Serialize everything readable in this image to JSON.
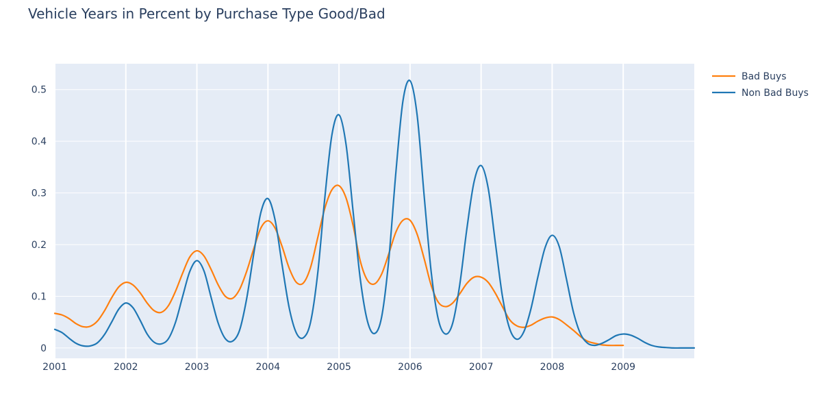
{
  "chart_data": {
    "type": "line",
    "title": "Vehicle Years in Percent by Purchase Type Good/Bad",
    "xlabel": "",
    "ylabel": "",
    "xlim": [
      2001,
      2010
    ],
    "ylim": [
      -0.02,
      0.55
    ],
    "x_ticks": [
      2001,
      2002,
      2003,
      2004,
      2005,
      2006,
      2007,
      2008,
      2009
    ],
    "y_ticks": [
      0,
      0.1,
      0.2,
      0.3,
      0.4,
      0.5
    ],
    "y_tick_labels": [
      "0",
      "0.1",
      "0.2",
      "0.3",
      "0.4",
      "0.5"
    ],
    "grid": true,
    "legend_position": "top-right",
    "series": [
      {
        "name": "Bad Buys",
        "color": "#ff7f0e",
        "x": [
          2001.0,
          2001.1,
          2001.2,
          2001.3,
          2001.4,
          2001.5,
          2001.6,
          2001.7,
          2001.8,
          2001.9,
          2002.0,
          2002.1,
          2002.2,
          2002.3,
          2002.4,
          2002.5,
          2002.6,
          2002.7,
          2002.8,
          2002.9,
          2003.0,
          2003.1,
          2003.2,
          2003.3,
          2003.4,
          2003.5,
          2003.6,
          2003.7,
          2003.8,
          2003.9,
          2004.0,
          2004.1,
          2004.2,
          2004.3,
          2004.4,
          2004.5,
          2004.6,
          2004.7,
          2004.8,
          2004.9,
          2005.0,
          2005.1,
          2005.2,
          2005.3,
          2005.4,
          2005.5,
          2005.6,
          2005.7,
          2005.8,
          2005.9,
          2006.0,
          2006.1,
          2006.2,
          2006.3,
          2006.4,
          2006.5,
          2006.6,
          2006.7,
          2006.8,
          2006.9,
          2007.0,
          2007.1,
          2007.2,
          2007.3,
          2007.4,
          2007.5,
          2007.6,
          2007.7,
          2007.8,
          2007.9,
          2008.0,
          2008.1,
          2008.2,
          2008.3,
          2008.4,
          2008.5,
          2008.6,
          2008.7,
          2008.8,
          2008.9,
          2009.0
        ],
        "y": [
          0.067,
          0.064,
          0.057,
          0.047,
          0.041,
          0.042,
          0.052,
          0.072,
          0.097,
          0.118,
          0.127,
          0.122,
          0.107,
          0.087,
          0.072,
          0.069,
          0.082,
          0.11,
          0.145,
          0.176,
          0.188,
          0.178,
          0.152,
          0.122,
          0.1,
          0.096,
          0.113,
          0.148,
          0.192,
          0.232,
          0.246,
          0.232,
          0.196,
          0.154,
          0.127,
          0.126,
          0.156,
          0.213,
          0.27,
          0.306,
          0.314,
          0.29,
          0.236,
          0.168,
          0.131,
          0.124,
          0.143,
          0.182,
          0.224,
          0.247,
          0.247,
          0.22,
          0.172,
          0.12,
          0.088,
          0.08,
          0.087,
          0.105,
          0.125,
          0.137,
          0.137,
          0.127,
          0.106,
          0.08,
          0.055,
          0.043,
          0.04,
          0.044,
          0.052,
          0.058,
          0.06,
          0.055,
          0.045,
          0.034,
          0.022,
          0.013,
          0.009,
          0.006,
          0.005,
          0.005,
          0.005
        ]
      },
      {
        "name": "Non Bad Buys",
        "color": "#1f77b4",
        "x": [
          2001.0,
          2001.1,
          2001.2,
          2001.3,
          2001.4,
          2001.5,
          2001.6,
          2001.7,
          2001.8,
          2001.9,
          2002.0,
          2002.1,
          2002.2,
          2002.3,
          2002.4,
          2002.5,
          2002.6,
          2002.7,
          2002.8,
          2002.9,
          2003.0,
          2003.1,
          2003.2,
          2003.3,
          2003.4,
          2003.5,
          2003.6,
          2003.7,
          2003.8,
          2003.9,
          2004.0,
          2004.1,
          2004.2,
          2004.3,
          2004.4,
          2004.5,
          2004.6,
          2004.7,
          2004.8,
          2004.9,
          2005.0,
          2005.1,
          2005.2,
          2005.3,
          2005.4,
          2005.5,
          2005.6,
          2005.7,
          2005.8,
          2005.9,
          2006.0,
          2006.1,
          2006.2,
          2006.3,
          2006.4,
          2006.5,
          2006.6,
          2006.7,
          2006.8,
          2006.9,
          2007.0,
          2007.1,
          2007.2,
          2007.3,
          2007.4,
          2007.5,
          2007.6,
          2007.7,
          2007.8,
          2007.9,
          2008.0,
          2008.1,
          2008.2,
          2008.3,
          2008.4,
          2008.5,
          2008.6,
          2008.7,
          2008.8,
          2008.9,
          2009.0,
          2009.1,
          2009.2,
          2009.3,
          2009.4,
          2009.5,
          2009.6,
          2009.7,
          2009.8,
          2009.9,
          2010.0
        ],
        "y": [
          0.036,
          0.03,
          0.019,
          0.009,
          0.004,
          0.004,
          0.01,
          0.026,
          0.05,
          0.075,
          0.087,
          0.078,
          0.054,
          0.027,
          0.011,
          0.008,
          0.018,
          0.05,
          0.1,
          0.148,
          0.169,
          0.149,
          0.098,
          0.048,
          0.018,
          0.013,
          0.034,
          0.095,
          0.182,
          0.262,
          0.289,
          0.248,
          0.16,
          0.077,
          0.029,
          0.02,
          0.05,
          0.144,
          0.29,
          0.412,
          0.451,
          0.393,
          0.262,
          0.133,
          0.052,
          0.028,
          0.06,
          0.17,
          0.339,
          0.478,
          0.517,
          0.45,
          0.292,
          0.144,
          0.054,
          0.027,
          0.048,
          0.123,
          0.231,
          0.321,
          0.353,
          0.309,
          0.204,
          0.1,
          0.038,
          0.017,
          0.031,
          0.075,
          0.138,
          0.194,
          0.218,
          0.196,
          0.134,
          0.069,
          0.027,
          0.009,
          0.005,
          0.009,
          0.016,
          0.024,
          0.027,
          0.025,
          0.019,
          0.011,
          0.005,
          0.002,
          0.001,
          0.0,
          0.0,
          0.0,
          0.0
        ]
      }
    ]
  }
}
